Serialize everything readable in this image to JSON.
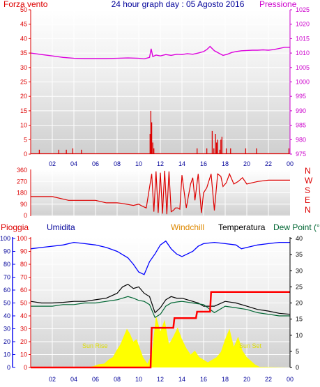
{
  "header": {
    "left": "Forza vento",
    "center": "24 hour graph day : 05 Agosto 2016",
    "right": "Pressione"
  },
  "colors": {
    "red": "#dd0000",
    "magenta": "#cc00cc",
    "navy": "#000099",
    "blue": "#0000ee",
    "orange": "#dd8800",
    "green": "#006633",
    "yellow": "#ffff00",
    "pressure_line": "#dd00dd",
    "humidity_line": "#0000ff",
    "temp_line": "#000000",
    "dew_line": "#006633",
    "rain_line": "#ff0000",
    "wind_line": "#dd0000",
    "dir_line": "#dd0000"
  },
  "chart_data": [
    {
      "type": "line",
      "name": "wind-pressure",
      "x_ticks": [
        "02",
        "04",
        "06",
        "08",
        "10",
        "12",
        "14",
        "16",
        "18",
        "20",
        "22",
        "00"
      ],
      "left_axis": {
        "ticks": [
          "0",
          "5",
          "10",
          "15",
          "20",
          "25",
          "30",
          "35",
          "40",
          "45",
          "50"
        ],
        "ylim": [
          0,
          50
        ]
      },
      "right_axis": {
        "ticks": [
          "975",
          "980",
          "985",
          "990",
          "995",
          "1000",
          "1005",
          "1010",
          "1015",
          "1020",
          "1025"
        ],
        "ylim": [
          975,
          1025
        ]
      },
      "pressure": {
        "x": [
          0,
          1,
          2,
          3,
          4,
          5,
          6,
          7,
          8,
          9,
          10,
          10.5,
          11,
          11.15,
          11.3,
          11.6,
          12,
          12.5,
          13,
          13.5,
          14,
          14.5,
          15,
          15.5,
          16,
          16.3,
          16.6,
          17,
          17.4,
          17.8,
          18.2,
          18.6,
          19,
          19.5,
          20,
          20.5,
          21,
          21.5,
          22,
          22.5,
          23,
          23.5,
          24
        ],
        "y": [
          1010,
          1009.5,
          1009,
          1008.5,
          1008.2,
          1008.1,
          1008.1,
          1008.1,
          1008.2,
          1008.3,
          1008.2,
          1008.0,
          1008.5,
          1011.5,
          1008.8,
          1009.3,
          1009.0,
          1009.5,
          1009.2,
          1009.6,
          1009.5,
          1009.8,
          1009.6,
          1010.0,
          1010.5,
          1011.2,
          1012.3,
          1010.8,
          1010.0,
          1009.2,
          1009.6,
          1010.2,
          1010.5,
          1010.8,
          1010.9,
          1011.0,
          1011.0,
          1011.1,
          1011.0,
          1011.2,
          1011.6,
          1012.0,
          1012.0
        ]
      },
      "wind": {
        "x": [
          0.8,
          2.6,
          3.3,
          3.9,
          4.7,
          11.05,
          11.12,
          11.2,
          11.3,
          11.4,
          15.4,
          16.3,
          16.8,
          16.95,
          17.1,
          17.2,
          17.3,
          17.5,
          17.6,
          17.7,
          18.1,
          18.5,
          19.9,
          20.9,
          23.9
        ],
        "y": [
          1.5,
          1.5,
          1.5,
          2,
          1.5,
          7,
          15,
          11,
          4,
          2,
          2,
          2,
          8,
          2,
          7,
          4,
          5,
          1.5,
          5,
          6,
          2,
          2,
          2,
          2,
          2
        ]
      }
    },
    {
      "type": "line",
      "name": "wind-direction",
      "y_ticks": [
        "360",
        "270",
        "180",
        "90",
        "0"
      ],
      "right_labels": [
        "N",
        "W",
        "S",
        "E",
        "N"
      ],
      "ylim": [
        0,
        360
      ],
      "x": [
        0,
        2,
        3.5,
        4,
        6,
        7,
        8,
        8.5,
        9.5,
        10,
        10.3,
        10.7,
        11.2,
        11.4,
        11.6,
        11.8,
        12,
        12.2,
        12.4,
        12.6,
        12.8,
        13,
        13.2,
        13.4,
        13.6,
        13.8,
        14,
        14.4,
        14.8,
        15,
        15.2,
        15.5,
        15.8,
        16,
        16.3,
        16.7,
        17,
        17.3,
        17.6,
        17.8,
        18.1,
        18.4,
        18.8,
        19.2,
        19.6,
        20,
        20.5,
        21,
        22,
        23,
        24
      ],
      "y": [
        150,
        150,
        120,
        120,
        120,
        100,
        100,
        95,
        80,
        90,
        75,
        60,
        330,
        30,
        350,
        20,
        340,
        15,
        355,
        10,
        350,
        30,
        40,
        60,
        60,
        50,
        320,
        60,
        250,
        300,
        120,
        330,
        20,
        180,
        220,
        330,
        40,
        330,
        310,
        230,
        260,
        330,
        250,
        270,
        300,
        250,
        260,
        270,
        280,
        280,
        280
      ]
    },
    {
      "type": "line",
      "name": "rain-humidity-temperature",
      "header_labels": {
        "rain": "Pioggia",
        "humidity": "Umidita",
        "windchill": "Windchill",
        "temperature": "Temperatura",
        "dewpoint": "Dew Point (°C"
      },
      "x_ticks": [
        "02",
        "04",
        "06",
        "08",
        "10",
        "12",
        "14",
        "16",
        "18",
        "20",
        "22",
        "00"
      ],
      "left_axis": {
        "ticks": [
          "0",
          "10",
          "20",
          "30",
          "40",
          "50",
          "60",
          "70",
          "80",
          "90",
          "100"
        ],
        "ylim": [
          0,
          100
        ]
      },
      "right_axis": {
        "ticks": [
          "0",
          "5",
          "10",
          "15",
          "20",
          "25",
          "30",
          "35",
          "40"
        ],
        "ylim": [
          0,
          40
        ]
      },
      "annotations": [
        "Sun Rise",
        "Sun Set"
      ],
      "humidity": {
        "x": [
          0,
          1,
          2,
          3,
          4,
          5,
          6,
          7,
          8,
          9,
          9.5,
          10,
          10.5,
          11,
          11.5,
          12,
          12.5,
          13,
          13.5,
          14,
          15,
          15.5,
          16,
          17,
          18,
          19,
          19.5,
          20,
          21,
          22,
          23,
          24
        ],
        "y": [
          92,
          93,
          94,
          95,
          97,
          96,
          95,
          93,
          90,
          85,
          80,
          74,
          72,
          82,
          88,
          95,
          98,
          92,
          88,
          86,
          90,
          94,
          96,
          97,
          96,
          95,
          92,
          93,
          95,
          96,
          97,
          97
        ],
        "range": [
          70,
          98
        ]
      },
      "temperature": {
        "x": [
          0,
          1,
          2,
          3,
          4,
          5,
          6,
          7,
          8,
          8.5,
          9,
          9.5,
          10,
          10.5,
          11,
          11.5,
          12,
          12.5,
          13,
          13.5,
          14,
          15,
          15.5,
          16,
          17,
          18,
          19,
          20,
          21,
          22,
          23,
          24
        ],
        "y": [
          20.5,
          20,
          20,
          20.2,
          20.5,
          20.5,
          21,
          21.5,
          23,
          25,
          25.8,
          24.5,
          25,
          23,
          22,
          17,
          18.5,
          21,
          22,
          21.5,
          21.5,
          20.5,
          20,
          19,
          19,
          20.5,
          20,
          19,
          18,
          17.5,
          16.8,
          16.5
        ]
      },
      "dewpoint": {
        "x": [
          0,
          1,
          2,
          3,
          4,
          5,
          6,
          7,
          8,
          9,
          9.5,
          10,
          10.5,
          11,
          11.5,
          12,
          12.5,
          13,
          13.5,
          14,
          15,
          16,
          17,
          18,
          19,
          20,
          21,
          22,
          23,
          24
        ],
        "y": [
          19,
          19,
          19,
          19.5,
          19.5,
          20,
          20,
          20.5,
          21,
          22,
          21.5,
          20.8,
          20.5,
          19.5,
          15.5,
          16.5,
          19,
          20,
          20.3,
          20.5,
          20,
          19.5,
          17,
          19,
          18.5,
          18,
          17,
          16.5,
          16,
          16
        ]
      },
      "rain": {
        "x": [
          0,
          11.1,
          11.2,
          13.2,
          13.3,
          15.3,
          15.4,
          16.6,
          16.7,
          24
        ],
        "y": [
          0,
          0,
          12.3,
          12.3,
          15.3,
          15.3,
          17.3,
          17.3,
          23.4,
          23.4
        ]
      },
      "solar": {
        "x": [
          0,
          5.2,
          5.8,
          6.3,
          6.8,
          7.2,
          7.6,
          8.0,
          8.3,
          8.6,
          8.9,
          9.2,
          9.5,
          9.8,
          10.1,
          10.4,
          10.8,
          11.2,
          11.6,
          12.0,
          12.4,
          12.8,
          13.2,
          13.6,
          14.0,
          14.4,
          14.8,
          15.2,
          15.6,
          16.0,
          16.4,
          16.8,
          17.2,
          17.6,
          18.0,
          18.4,
          18.8,
          19.2,
          19.6,
          20.0,
          20.4,
          20.8,
          21.2,
          24
        ],
        "y": [
          0,
          0,
          1,
          2.5,
          3,
          6,
          8,
          14,
          18,
          24,
          30,
          26,
          20,
          22,
          15,
          8,
          3,
          10,
          40,
          28,
          37,
          18,
          24,
          31,
          22,
          15,
          10,
          13,
          8,
          6,
          4,
          6,
          8,
          12,
          22,
          30,
          16,
          24,
          13,
          8,
          5,
          2,
          0.5,
          0
        ]
      }
    }
  ]
}
